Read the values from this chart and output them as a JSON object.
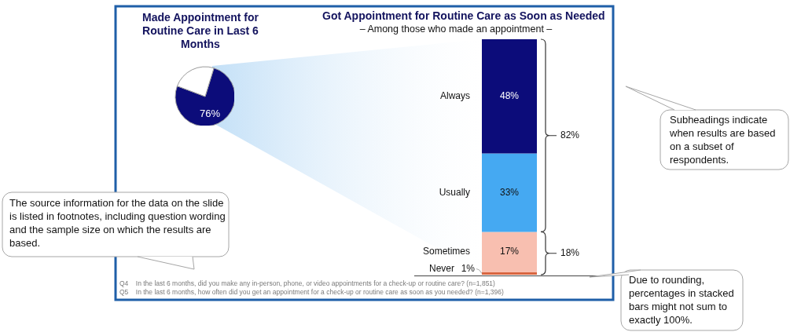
{
  "chart_data": [
    {
      "type": "pie",
      "title": "Made Appointment for Routine Care in Last 6 Months",
      "categories": [
        null,
        null
      ],
      "values": [
        76,
        24
      ],
      "colors": [
        "#0c0c7a",
        "#ffffff"
      ],
      "value_labels": [
        "76%",
        null
      ],
      "annotations": [
        "Q4    In the last 6 months, did you make any in-person, phone, or video appointments for a check-up or routine care? (n=1,851)"
      ]
    },
    {
      "type": "bar",
      "title": "Got Appointment for Routine Care as Soon as Needed",
      "subtitle": "– Among those who made an appointment –",
      "categories": [
        null
      ],
      "stacked": true,
      "series": [
        {
          "name": "Never",
          "color": "#d8653f",
          "values": [
            1
          ],
          "value_labels": [
            "1%"
          ]
        },
        {
          "name": "Sometimes",
          "color": "#f8bfb0",
          "values": [
            17
          ],
          "value_labels": [
            "17%"
          ]
        },
        {
          "name": "Usually",
          "color": "#45a9f2",
          "values": [
            33
          ],
          "value_labels": [
            "33%"
          ]
        },
        {
          "name": "Always",
          "color": "#0c0c7a",
          "values": [
            48
          ],
          "value_labels": [
            "48%"
          ]
        }
      ],
      "annotations": [
        "18%",
        "82%",
        "Q5    In the last 6 months, how often did you get an appointment for a check-up or routine care as soon as you needed? (n=1,396)",
        "Subheadings indicate when results are based on a subset of respondents.",
        "The source information for the data on the slide is listed in footnotes, including question wording and the sample size on which the results are based.",
        "Due to rounding, percentages in stacked bars might not sum to exactly 100%."
      ]
    }
  ]
}
